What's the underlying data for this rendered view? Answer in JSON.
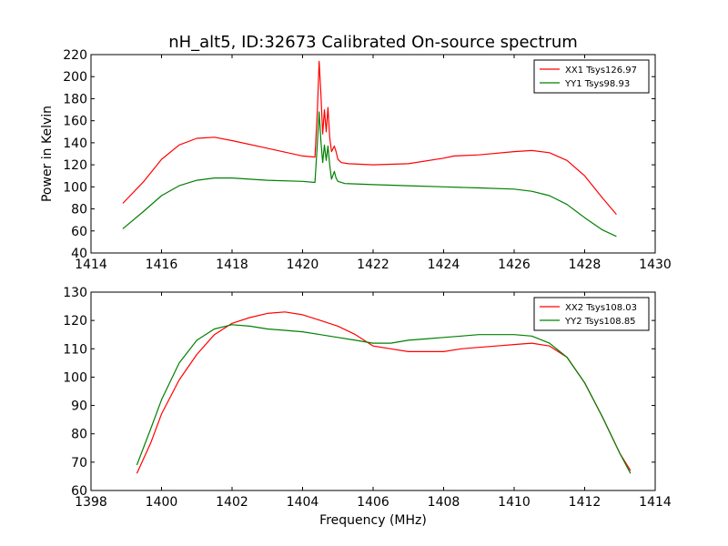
{
  "figure": {
    "title": "nH_alt5, ID:32673 Calibrated On-source spectrum"
  },
  "chart_data": [
    {
      "type": "line",
      "title": "nH_alt5, ID:32673 Calibrated On-source spectrum",
      "xlabel": "",
      "ylabel": "Power in Kelvin",
      "xlim": [
        1414,
        1430
      ],
      "ylim": [
        40,
        220
      ],
      "xticks": [
        "1414",
        "1416",
        "1418",
        "1420",
        "1422",
        "1424",
        "1426",
        "1428",
        "1430"
      ],
      "yticks": [
        "40",
        "60",
        "80",
        "100",
        "120",
        "140",
        "160",
        "180",
        "200",
        "220"
      ],
      "legend_position": "top-right",
      "series": [
        {
          "name": "XX1 Tsys126.97",
          "color": "#ff0000",
          "x": [
            1414.9,
            1415.5,
            1416.0,
            1416.5,
            1417.0,
            1417.5,
            1418.0,
            1419.0,
            1420.0,
            1420.35,
            1420.42,
            1420.47,
            1420.52,
            1420.57,
            1420.62,
            1420.67,
            1420.72,
            1420.77,
            1420.82,
            1420.9,
            1420.95,
            1421.0,
            1421.1,
            1421.3,
            1422.0,
            1423.0,
            1424.0,
            1424.3,
            1425.0,
            1426.0,
            1426.5,
            1427.0,
            1427.5,
            1428.0,
            1428.5,
            1428.9
          ],
          "values": [
            85,
            105,
            125,
            138,
            144,
            145,
            142,
            135,
            128,
            127,
            170,
            214,
            185,
            148,
            170,
            150,
            172,
            145,
            132,
            137,
            132,
            125,
            122,
            121,
            120,
            121,
            126,
            128,
            129,
            132,
            133,
            131,
            124,
            110,
            90,
            75
          ]
        },
        {
          "name": "YY1 Tsys98.93",
          "color": "#008000",
          "x": [
            1414.9,
            1415.5,
            1416.0,
            1416.5,
            1417.0,
            1417.5,
            1418.0,
            1419.0,
            1420.0,
            1420.35,
            1420.42,
            1420.47,
            1420.52,
            1420.57,
            1420.62,
            1420.67,
            1420.72,
            1420.77,
            1420.82,
            1420.9,
            1420.95,
            1421.0,
            1421.2,
            1422.0,
            1423.0,
            1424.0,
            1425.0,
            1426.0,
            1426.5,
            1427.0,
            1427.5,
            1428.0,
            1428.5,
            1428.9
          ],
          "values": [
            62,
            78,
            92,
            101,
            106,
            108,
            108,
            106,
            105,
            104,
            140,
            168,
            142,
            122,
            138,
            124,
            137,
            120,
            107,
            114,
            108,
            105,
            103,
            102,
            101,
            100,
            99,
            98,
            96,
            92,
            84,
            72,
            61,
            55
          ]
        }
      ]
    },
    {
      "type": "line",
      "title": "",
      "xlabel": "Frequency (MHz)",
      "ylabel": "",
      "xlim": [
        1398,
        1414
      ],
      "ylim": [
        60,
        130
      ],
      "xticks": [
        "1398",
        "1400",
        "1402",
        "1404",
        "1406",
        "1408",
        "1410",
        "1412",
        "1414"
      ],
      "yticks": [
        "60",
        "70",
        "80",
        "90",
        "100",
        "110",
        "120",
        "130"
      ],
      "legend_position": "top-right",
      "series": [
        {
          "name": "XX2 Tsys108.03",
          "color": "#ff0000",
          "x": [
            1399.3,
            1399.7,
            1400.0,
            1400.5,
            1401.0,
            1401.5,
            1402.0,
            1402.5,
            1403.0,
            1403.5,
            1404.0,
            1404.5,
            1405.0,
            1405.5,
            1406.0,
            1406.5,
            1407.0,
            1407.5,
            1408.0,
            1408.5,
            1409.0,
            1409.5,
            1410.0,
            1410.5,
            1411.0,
            1411.5,
            1412.0,
            1412.5,
            1413.0,
            1413.3
          ],
          "values": [
            66,
            77,
            87,
            99,
            108,
            115,
            119,
            121,
            122.5,
            123,
            122,
            120,
            118,
            115,
            111,
            110,
            109,
            109,
            109,
            110,
            110.5,
            111,
            111.5,
            112,
            111,
            107,
            98,
            86,
            73,
            67
          ]
        },
        {
          "name": "YY2 Tsys108.85",
          "color": "#008000",
          "x": [
            1399.3,
            1399.7,
            1400.0,
            1400.5,
            1401.0,
            1401.5,
            1402.0,
            1402.5,
            1403.0,
            1403.5,
            1404.0,
            1404.5,
            1405.0,
            1405.5,
            1406.0,
            1406.5,
            1407.0,
            1407.5,
            1408.0,
            1408.5,
            1409.0,
            1409.5,
            1410.0,
            1410.5,
            1411.0,
            1411.5,
            1412.0,
            1412.5,
            1413.0,
            1413.3
          ],
          "values": [
            69,
            82,
            92,
            105,
            113,
            117,
            118.5,
            118,
            117,
            116.5,
            116,
            115,
            114,
            113,
            112,
            112,
            113,
            113.5,
            114,
            114.5,
            115,
            115,
            115,
            114.5,
            112,
            107,
            98,
            86,
            73,
            66
          ]
        }
      ]
    }
  ]
}
